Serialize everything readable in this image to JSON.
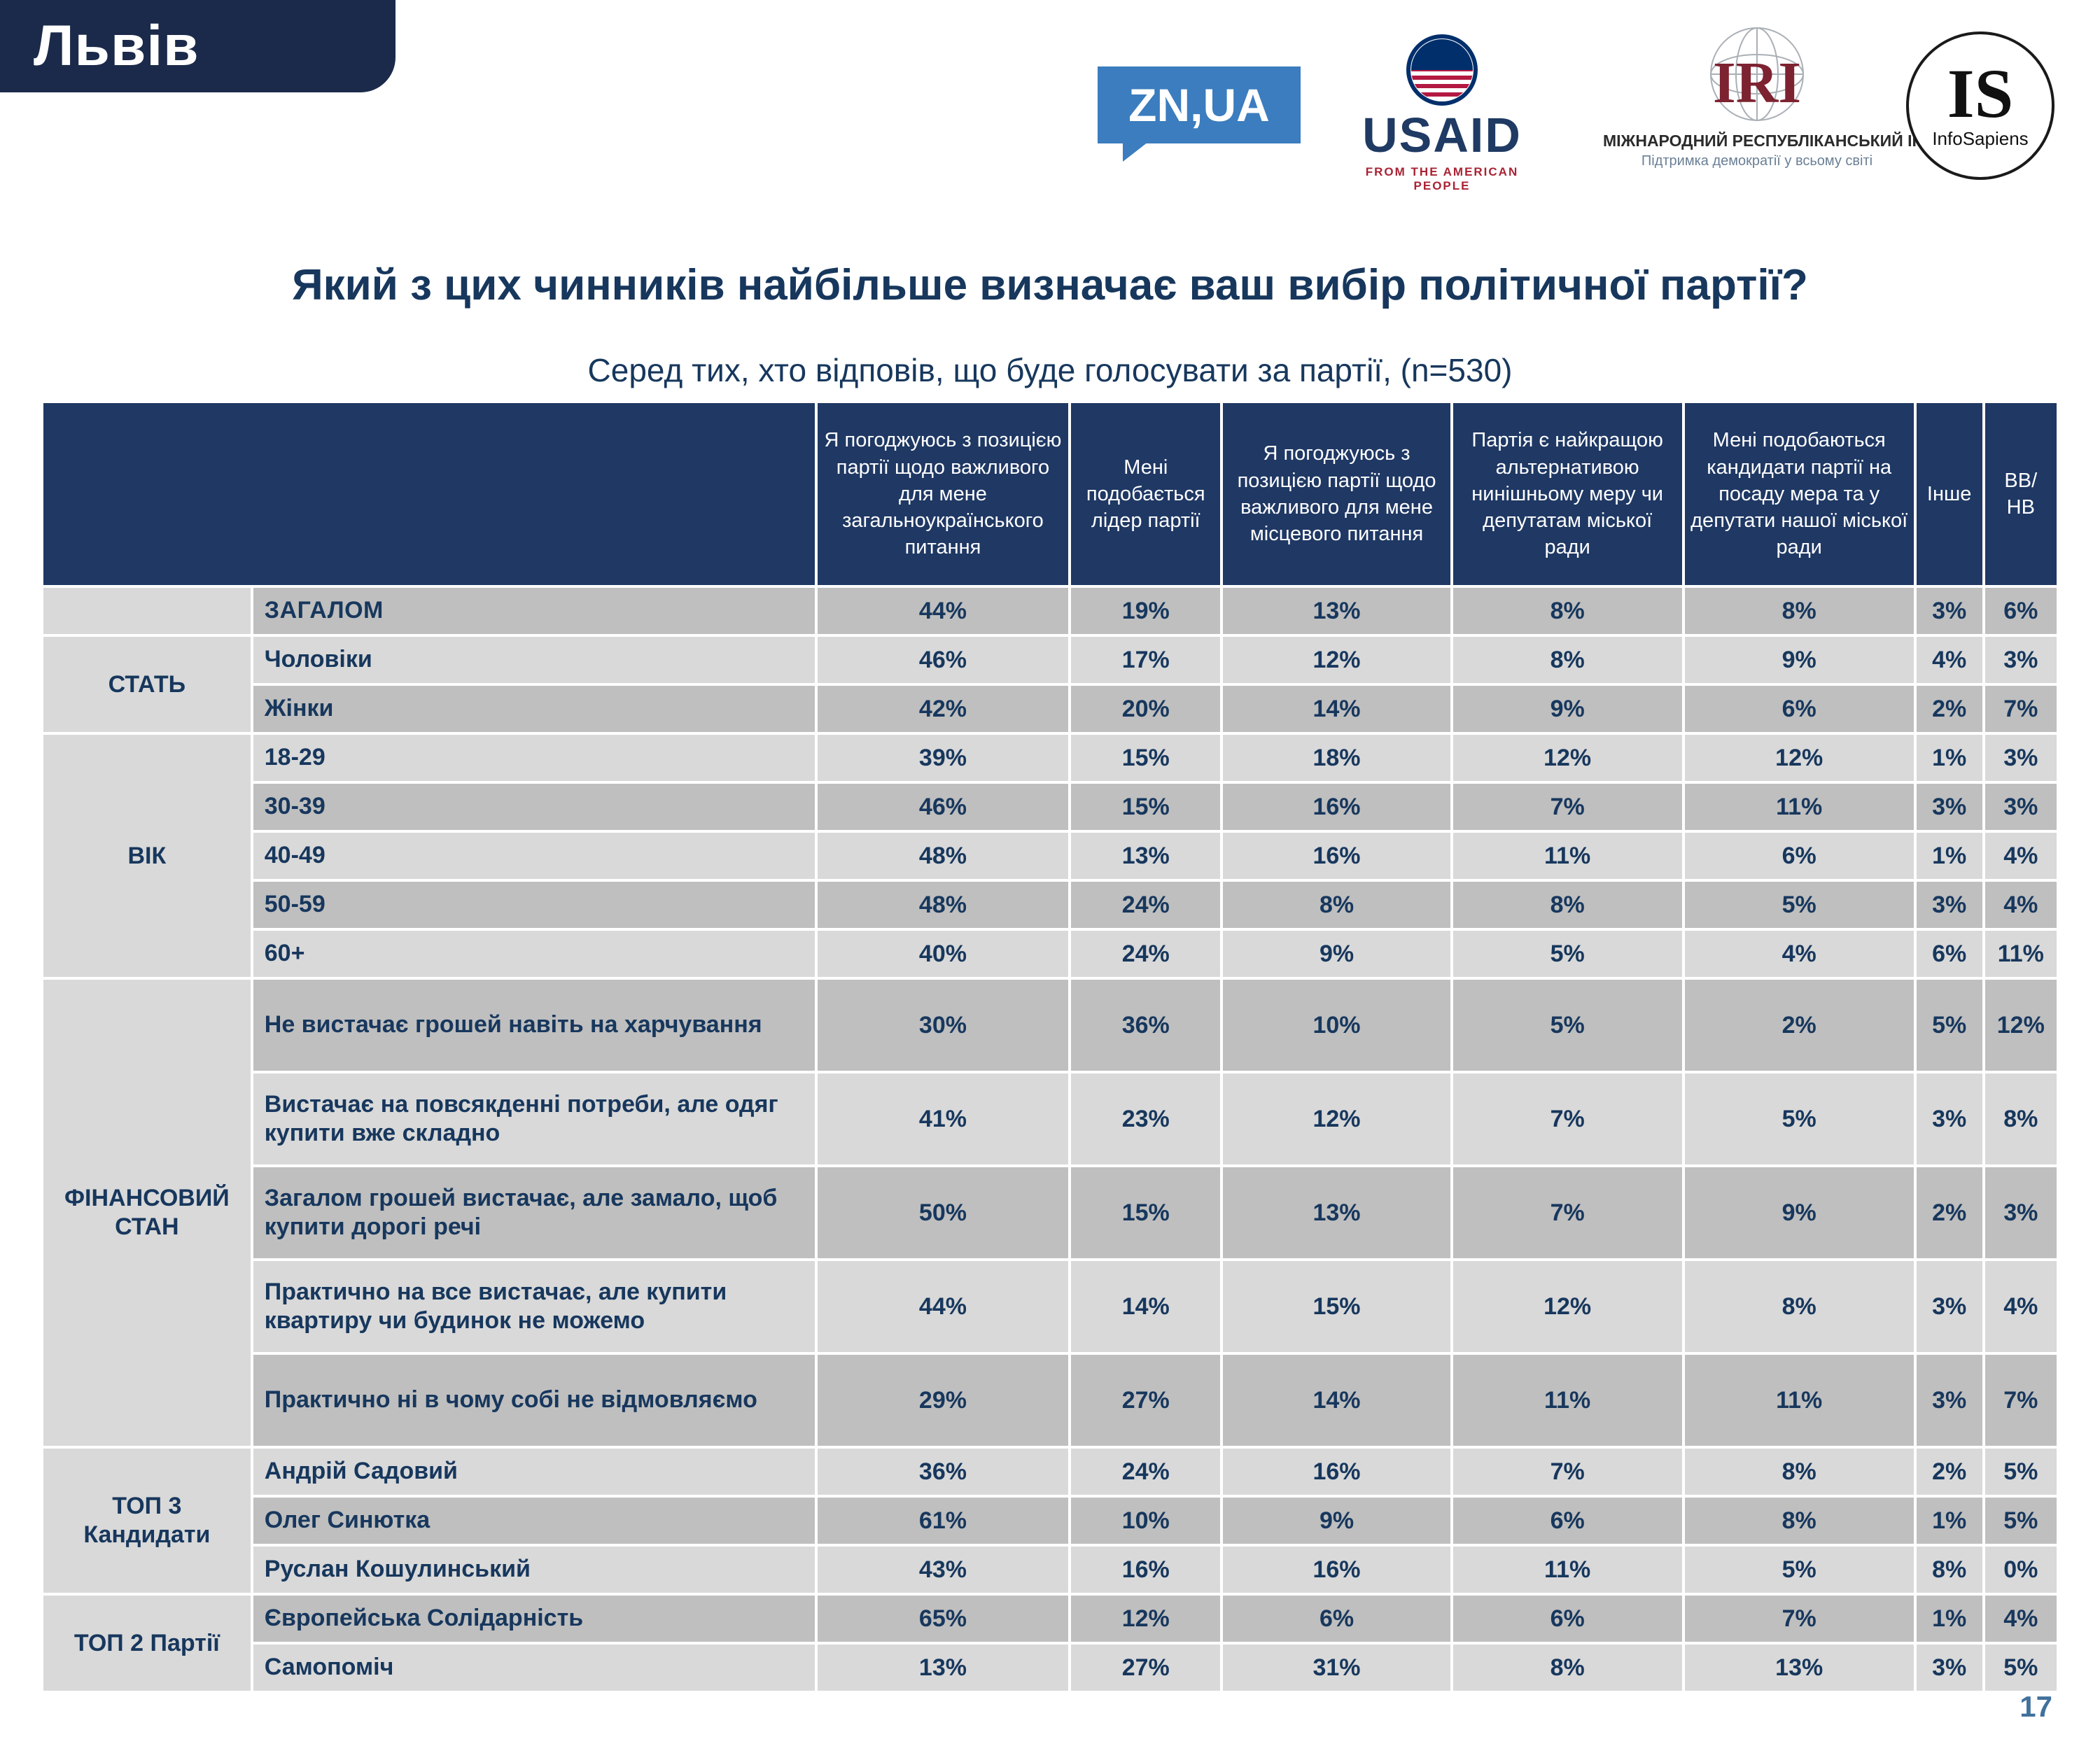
{
  "region": "Львів",
  "title": "Який з цих чинників найбільше визначає ваш вибір політичної партії?",
  "subtitle": "Серед тих, хто відповів, що буде голосувати за партії, (n=530)",
  "page_number": "17",
  "logos": {
    "znua_text": "ZN,UA",
    "usaid_word": "USAID",
    "usaid_tagline": "FROM THE AMERICAN PEOPLE",
    "iri_abbr": "IRI",
    "iri_line1": "МІЖНАРОДНИЙ РЕСПУБЛІКАНСЬКИЙ ІНСТИТУТ",
    "iri_line2": "Підтримка демократії у всьому світі",
    "is_abbr": "IS",
    "is_name": "InfoSapiens"
  },
  "colors": {
    "navy_header": "#1f3864",
    "navy_banner": "#1b2a4a",
    "text_navy": "#17375d",
    "row_light": "#d9d9d9",
    "row_medium": "#bfbfbf",
    "znua_blue": "#3b7dbe",
    "iri_maroon": "#7d2230",
    "usaid_red": "#a92334",
    "page_number_blue": "#41719c"
  },
  "chart_data": {
    "type": "table",
    "title": "Який з цих чинників найбільше визначає ваш вибір політичної партії?",
    "subtitle": "Серед тих, хто відповів, що буде голосувати за партії, (n=530)",
    "sample_note": "n=530",
    "columns": [
      "Я погоджуюсь з позицією партії щодо важливого для мене загальноукраїнського питання",
      "Мені подобається лідер партії",
      "Я погоджуюсь з позицією партії щодо важливого для мене місцевого питання",
      "Партія є найкращою альтернативою нинішньому меру чи депутатам міської ради",
      "Мені подобаються кандидати партії на посаду мера та у депутати нашої міської ради",
      "Інше",
      "ВВ/ НВ"
    ],
    "groups": [
      {
        "label": "",
        "rows": [
          {
            "label": "ЗАГАЛОМ",
            "emphasis": true,
            "values": [
              "44%",
              "19%",
              "13%",
              "8%",
              "8%",
              "3%",
              "6%"
            ]
          }
        ]
      },
      {
        "label": "СТАТЬ",
        "rows": [
          {
            "label": "Чоловіки",
            "values": [
              "46%",
              "17%",
              "12%",
              "8%",
              "9%",
              "4%",
              "3%"
            ]
          },
          {
            "label": "Жінки",
            "values": [
              "42%",
              "20%",
              "14%",
              "9%",
              "6%",
              "2%",
              "7%"
            ]
          }
        ]
      },
      {
        "label": "ВІК",
        "rows": [
          {
            "label": "18-29",
            "values": [
              "39%",
              "15%",
              "18%",
              "12%",
              "12%",
              "1%",
              "3%"
            ]
          },
          {
            "label": "30-39",
            "values": [
              "46%",
              "15%",
              "16%",
              "7%",
              "11%",
              "3%",
              "3%"
            ]
          },
          {
            "label": "40-49",
            "values": [
              "48%",
              "13%",
              "16%",
              "11%",
              "6%",
              "1%",
              "4%"
            ]
          },
          {
            "label": "50-59",
            "values": [
              "48%",
              "24%",
              "8%",
              "8%",
              "5%",
              "3%",
              "4%"
            ]
          },
          {
            "label": "60+",
            "values": [
              "40%",
              "24%",
              "9%",
              "5%",
              "4%",
              "6%",
              "11%"
            ]
          }
        ]
      },
      {
        "label": "ФІНАНСОВИЙ СТАН",
        "rows": [
          {
            "label": "Не вистачає грошей навіть на харчування",
            "tall": true,
            "values": [
              "30%",
              "36%",
              "10%",
              "5%",
              "2%",
              "5%",
              "12%"
            ]
          },
          {
            "label": "Вистачає на повсякденні потреби, але одяг купити вже складно",
            "tall": true,
            "values": [
              "41%",
              "23%",
              "12%",
              "7%",
              "5%",
              "3%",
              "8%"
            ]
          },
          {
            "label": "Загалом грошей вистачає, але замало, щоб купити дорогі речі",
            "tall": true,
            "values": [
              "50%",
              "15%",
              "13%",
              "7%",
              "9%",
              "2%",
              "3%"
            ]
          },
          {
            "label": "Практично на все вистачає, але купити квартиру чи будинок не можемо",
            "tall": true,
            "values": [
              "44%",
              "14%",
              "15%",
              "12%",
              "8%",
              "3%",
              "4%"
            ]
          },
          {
            "label": "Практично ні в чому собі не відмовляємо",
            "tall": true,
            "values": [
              "29%",
              "27%",
              "14%",
              "11%",
              "11%",
              "3%",
              "7%"
            ]
          }
        ]
      },
      {
        "label": "ТОП 3 Кандидати",
        "rows": [
          {
            "label": "Андрій Садовий",
            "values": [
              "36%",
              "24%",
              "16%",
              "7%",
              "8%",
              "2%",
              "5%"
            ]
          },
          {
            "label": "Олег Синютка",
            "values": [
              "61%",
              "10%",
              "9%",
              "6%",
              "8%",
              "1%",
              "5%"
            ]
          },
          {
            "label": "Руслан Кошулинський",
            "values": [
              "43%",
              "16%",
              "16%",
              "11%",
              "5%",
              "8%",
              "0%"
            ]
          }
        ]
      },
      {
        "label": "ТОП 2 Партії",
        "rows": [
          {
            "label": "Європейська Солідарність",
            "values": [
              "65%",
              "12%",
              "6%",
              "6%",
              "7%",
              "1%",
              "4%"
            ]
          },
          {
            "label": "Самопоміч",
            "values": [
              "13%",
              "27%",
              "31%",
              "8%",
              "13%",
              "3%",
              "5%"
            ]
          }
        ]
      }
    ]
  }
}
